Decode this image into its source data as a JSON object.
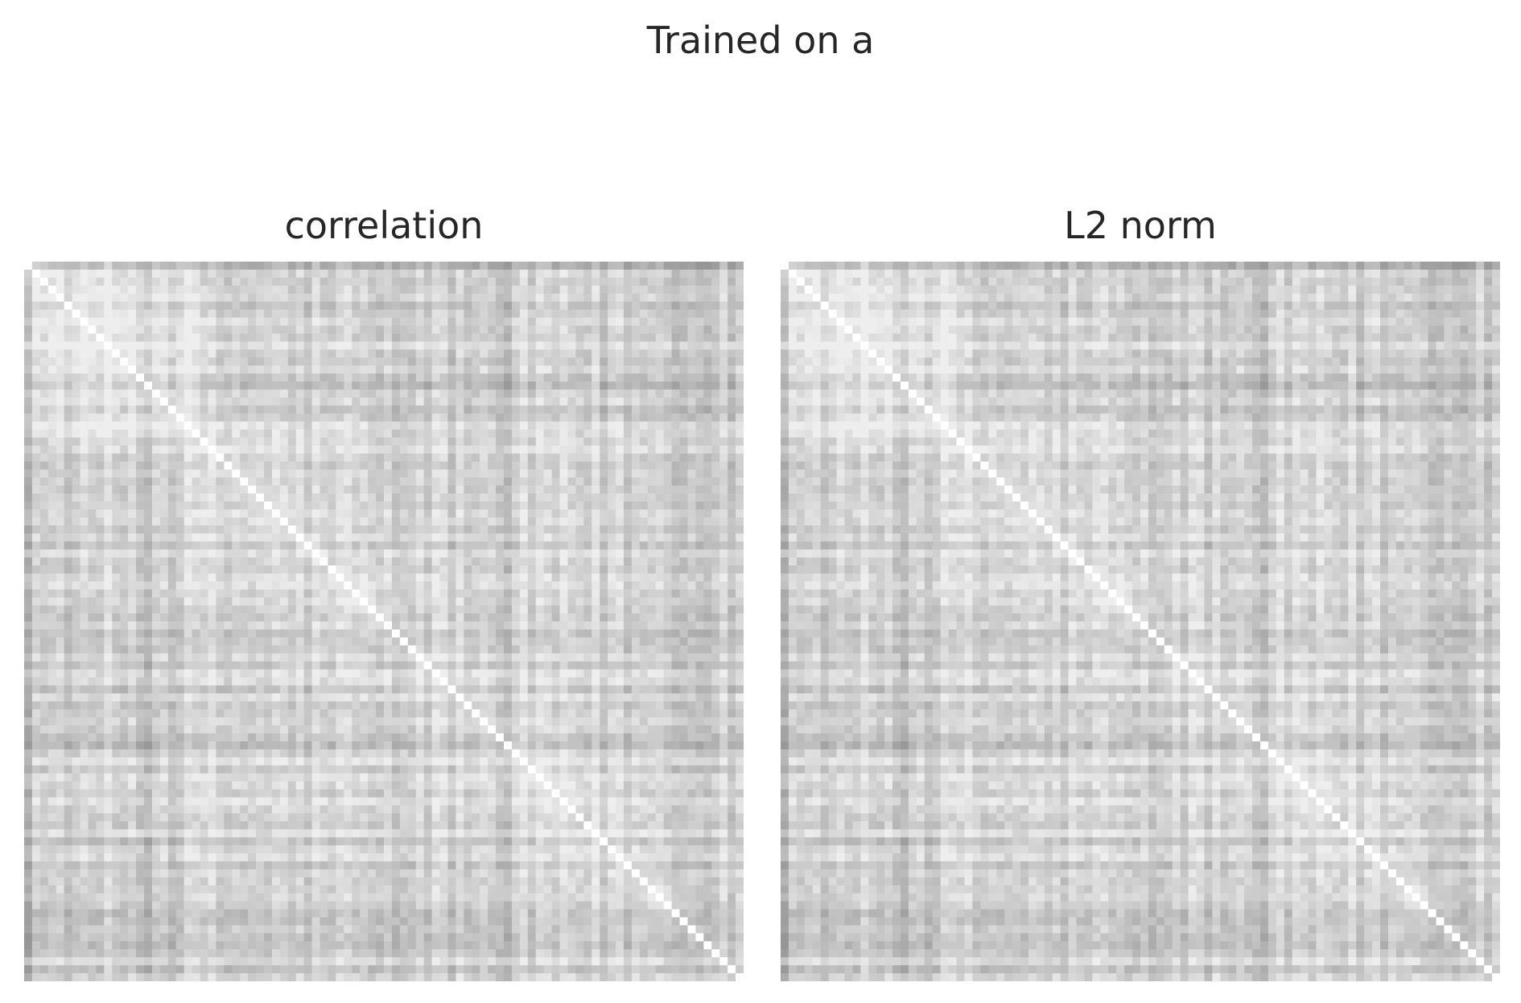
{
  "figure": {
    "suptitle": "Trained on a"
  },
  "chart_data": [
    {
      "type": "heatmap",
      "title": "correlation",
      "xlabel": "",
      "ylabel": "",
      "colormap": "grayscale",
      "diagonal_value": 1.0,
      "rows": 90,
      "cols": 90,
      "value_range": [
        0.35,
        1.0
      ],
      "pattern": "symmetric similarity matrix; lighter block in the upper-left items, darker banded rows/columns throughout"
    },
    {
      "type": "heatmap",
      "title": "L2 norm",
      "xlabel": "",
      "ylabel": "",
      "colormap": "grayscale",
      "diagonal_value": 1.0,
      "rows": 90,
      "cols": 90,
      "value_range": [
        0.5,
        1.0
      ],
      "pattern": "symmetric similarity matrix with lower contrast than the correlation panel; same banded structure"
    }
  ]
}
